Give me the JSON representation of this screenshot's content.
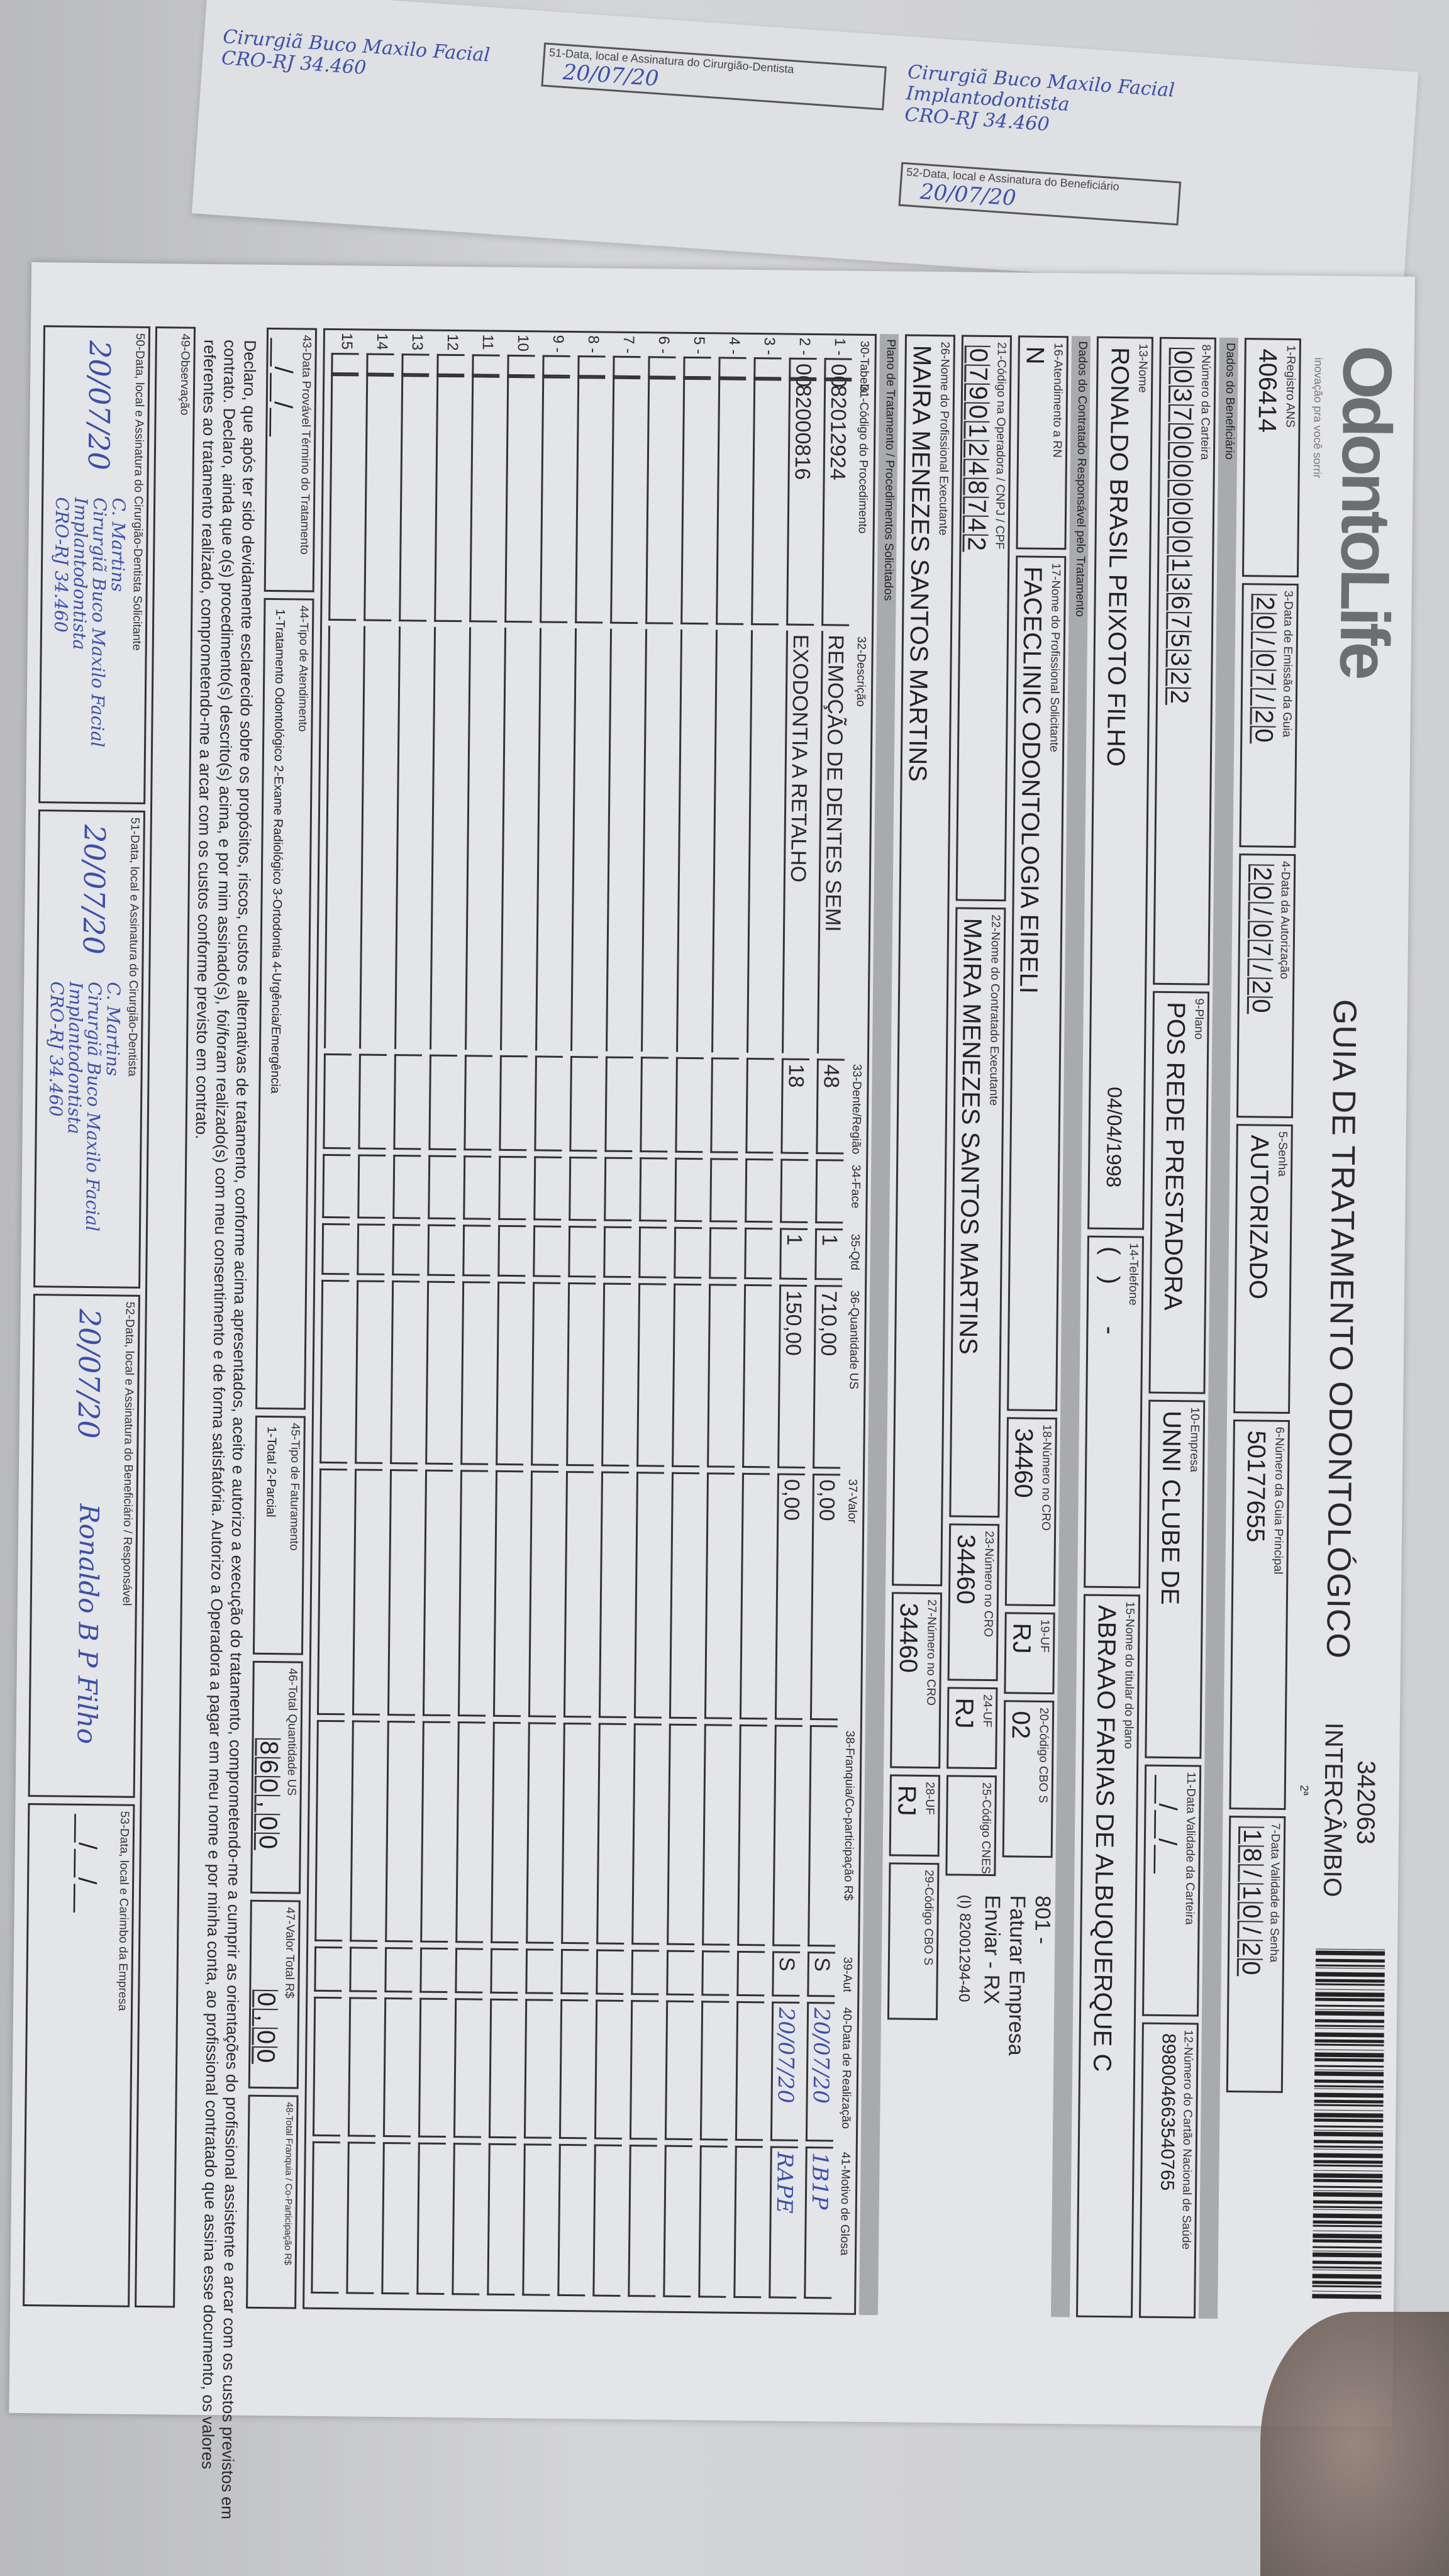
{
  "form": {
    "brand": "OdontoLife",
    "brand_tagline": "inovação pra você sorrir",
    "title": "GUIA DE TRATAMENTO ODONTOLÓGICO",
    "guide_number": "342063",
    "guide_type": "INTERCÂMBIO",
    "page_marker": "2ª",
    "header": {
      "registro_ans": {
        "label": "1-Registro ANS",
        "value": "406414"
      },
      "data_emissao": {
        "label": "3-Data de Emissão da Guia",
        "value": "20/07/20"
      },
      "data_autorizacao": {
        "label": "4-Data da Autorização",
        "value": "20/07/20"
      },
      "senha": {
        "label": "5-Senha",
        "value": "AUTORIZADO"
      },
      "guia_principal": {
        "label": "6-Número da Guia Principal",
        "value": "50177655"
      },
      "validade_senha": {
        "label": "7-Data Validade da Senha",
        "value": "18/10/20"
      }
    },
    "section_beneficiario": "Dados do Beneficiário",
    "beneficiario": {
      "carteira": {
        "label": "8-Número da Carteira",
        "value": "0037000000013675322"
      },
      "plano": {
        "label": "9-Plano",
        "value": "POS REDE PRESTADORA"
      },
      "empresa": {
        "label": "10-Empresa",
        "value": "UNNI CLUBE DE"
      },
      "validade_carteira": {
        "label": "11-Data Validade da Carteira",
        "value": "__/__/__"
      },
      "cns": {
        "label": "12-Número do Cartão Nacional de Saúde",
        "value": "898004663540765"
      },
      "nome": {
        "label": "13-Nome",
        "value": "RONALDO BRASIL PEIXOTO FILHO"
      },
      "nascimento": "04/04/1998",
      "telefone": {
        "label": "14-Telefone",
        "value": "(   )      -    "
      },
      "titular": {
        "label": "15-Nome do titular do plano",
        "value": "ABRAAO FARIAS DE ALBUQUERQUE C"
      }
    },
    "section_contratado": "Dados do Contratado Responsável pelo Tratamento",
    "contratado": {
      "rn": {
        "label": "16-Atendimento a RN",
        "value": "N"
      },
      "solicitante": {
        "label": "17-Nome do Profissional Solicitante",
        "value": "FACECLINIC ODONTOLOGIA EIRELI"
      },
      "cro_solicitante": {
        "label": "18-Número no CRO",
        "value": "34460"
      },
      "uf_solicitante": {
        "label": "19-UF",
        "value": "RJ"
      },
      "cbo_solicitante": {
        "label": "20-Código CBO S",
        "value": "02"
      },
      "note_1": "801 -",
      "note_2": "Faturar Empresa",
      "codigo_operadora": {
        "label": "21-Código na Operadora / CNPJ / CPF",
        "value": "07901248742"
      },
      "executante": {
        "label": "22-Nome do Contratado Executante",
        "value": "MAIRA MENEZES SANTOS MARTINS"
      },
      "cro_executante": {
        "label": "23-Número no CRO",
        "value": "34460"
      },
      "uf_executante": {
        "label": "24-UF",
        "value": "RJ"
      },
      "cnes": {
        "label": "25-Código CNES",
        "value": ""
      },
      "note_3": "Enviar - RX",
      "note_4": "(I) 82001294-40",
      "prof_executante": {
        "label": "26-Nome do Profissional Executante",
        "value": "MAIRA MENEZES SANTOS MARTINS"
      },
      "cro_prof": {
        "label": "27-Número no CRO",
        "value": "34460"
      },
      "uf_prof": {
        "label": "28-UF",
        "value": "RJ"
      },
      "cbo_prof": {
        "label": "29-Código CBO S",
        "value": ""
      }
    },
    "section_plano": "Plano de Tratamento / Procedimentos Solicitados",
    "table": {
      "columns": [
        "30-Tabela",
        "31-Código do Procedimento",
        "32-Descrição",
        "33-Dente/Região",
        "34-Face",
        "35-Qtd",
        "36-Quantidade US",
        "37-Valor",
        "38-Franquia/Co-participação R$",
        "39-Aut",
        "40-Data de Realização",
        "41-Motivo de Glosa"
      ],
      "rows": [
        {
          "n": "1 -",
          "tabela": "00",
          "codigo": "82012924",
          "descricao": "REMOÇÃO DE DENTES SEMI",
          "dente": "48",
          "face": "",
          "qtd": "1",
          "us": "710,00",
          "valor": "0,00",
          "franquia": "",
          "aut": "S",
          "data": "20/07/20",
          "motivo": "1B1P"
        },
        {
          "n": "2 -",
          "tabela": "00",
          "codigo": "82000816",
          "descricao": "EXODONTIA A RETALHO",
          "dente": "18",
          "face": "",
          "qtd": "1",
          "us": "150,00",
          "valor": "0,00",
          "franquia": "",
          "aut": "S",
          "data": "20/07/20",
          "motivo": "RAPE"
        },
        {
          "n": "3 -"
        },
        {
          "n": "4 -"
        },
        {
          "n": "5 -"
        },
        {
          "n": "6 -"
        },
        {
          "n": "7 -"
        },
        {
          "n": "8 -"
        },
        {
          "n": "9 -"
        },
        {
          "n": "10"
        },
        {
          "n": "11"
        },
        {
          "n": "12"
        },
        {
          "n": "13"
        },
        {
          "n": "14"
        },
        {
          "n": "15"
        }
      ]
    },
    "totals": {
      "data_termino": {
        "label": "43-Data Provável Término do Tratamento",
        "value": "__/__/__"
      },
      "tipo_atendimento": {
        "label": "44-Tipo de Atendimento",
        "value": "1-Tratamento Odontológico  2-Exame Radiológico  3-Ortodontia  4-Urgência/Emergência"
      },
      "tipo_faturamento": {
        "label": "45-Tipo de Faturamento",
        "value": "1-Total  2-Parcial"
      },
      "total_us": {
        "label": "46-Total Quantidade US",
        "value": "860,00"
      },
      "valor_total": {
        "label": "47-Valor Total R$",
        "value": "0,00"
      },
      "franquia_total": {
        "label": "48-Total Franquia / Co-Participação R$",
        "value": ""
      }
    },
    "declaration": [
      "Declaro, que após ter sido devidamente esclarecido sobre os propósitos, riscos, custos e alternativas de tratamento, conforme acima apresentados, aceito e autorizo a execução do tratamento, comprometendo-me a cumprir as orientações do profissional assistente e arcar com os custos previstos em",
      "contrato. Declaro, ainda que o(s) procedimento(s) descrito(s) acima, e por mim assinado(s), foi/foram realizado(s) com meu consentimento e de forma satisfatória. Autorizo a Operadora a pagar em meu nome e por minha conta, ao profissional contratado que assina esse documento, os valores",
      "referentes ao tratamento realizado, comprometendo-me a arcar com os custos conforme previsto em contrato."
    ],
    "observacao": {
      "label": "49-Observação",
      "value": ""
    },
    "signatures": {
      "s50": {
        "label": "50-Data, local e Assinatura do Cirurgião-Dentista Solicitante",
        "date": "20/07/20"
      },
      "s51": {
        "label": "51-Data, local e Assinatura do Cirurgião-Dentista",
        "date": "20/07/20"
      },
      "s52": {
        "label": "52-Data, local e Assinatura do Beneficiário / Responsável",
        "date": "20/07/20",
        "name": "Ronaldo B P Filho"
      },
      "s53": {
        "label": "53-Data, local e Carimbo da Empresa",
        "date": "__/__/__"
      }
    },
    "stamp": [
      "C. Martins",
      "Cirurgiã Buco Maxilo Facial",
      "Implantodontista",
      "CRO-RJ 34.460"
    ]
  },
  "behind_paper": {
    "label": "51-Data, local e Assinatura do Cirurgião-Dentista",
    "label2": "52-Data, local e Assinatura do Beneficiário",
    "date": "20/07/20"
  },
  "colors": {
    "paper": "#e4e5e8",
    "ink": "#2a2a2e",
    "pen": "#3b4fa8",
    "band": "#a9aaae"
  }
}
